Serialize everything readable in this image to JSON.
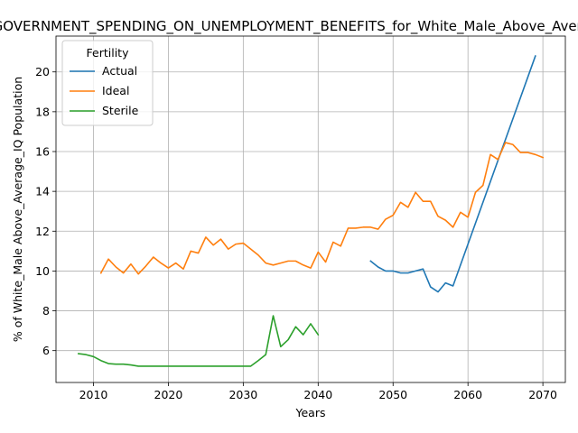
{
  "chart_data": {
    "type": "line",
    "title": "GOVERNMENT_SPENDING_ON_UNEMPLOYMENT_BENEFITS_for_White_Male_Above_Average_IQ",
    "xlabel": "Years",
    "ylabel": "% of White_Male Above_Average_IQ Population",
    "xlim": [
      2005,
      2073
    ],
    "ylim": [
      4.4,
      21.8
    ],
    "xticks": [
      2010,
      2020,
      2030,
      2040,
      2050,
      2060,
      2070
    ],
    "yticks": [
      6,
      8,
      10,
      12,
      14,
      16,
      18,
      20
    ],
    "grid": true,
    "legend": {
      "title": "Fertility",
      "position": "top-left"
    },
    "series": [
      {
        "name": "Actual",
        "color": "#1f77b4",
        "x": [
          2047,
          2048,
          2049,
          2050,
          2051,
          2052,
          2053,
          2054,
          2055,
          2056,
          2057,
          2058,
          2069
        ],
        "y": [
          10.5,
          10.2,
          10.0,
          10.0,
          9.9,
          9.9,
          10.0,
          10.1,
          9.2,
          8.95,
          9.4,
          9.25,
          20.8
        ]
      },
      {
        "name": "Ideal",
        "color": "#ff7f0e",
        "x": [
          2011,
          2012,
          2013,
          2014,
          2015,
          2016,
          2017,
          2018,
          2019,
          2020,
          2021,
          2022,
          2023,
          2024,
          2025,
          2026,
          2027,
          2028,
          2029,
          2030,
          2031,
          2032,
          2033,
          2034,
          2035,
          2036,
          2037,
          2038,
          2039,
          2040,
          2041,
          2042,
          2043,
          2044,
          2045,
          2046,
          2047,
          2048,
          2049,
          2050,
          2051,
          2052,
          2053,
          2054,
          2055,
          2056,
          2057,
          2058,
          2059,
          2060,
          2061,
          2062,
          2063,
          2064,
          2065,
          2066,
          2067,
          2068,
          2069,
          2070
        ],
        "y": [
          9.9,
          10.6,
          10.2,
          9.9,
          10.35,
          9.85,
          10.25,
          10.7,
          10.4,
          10.15,
          10.4,
          10.1,
          11.0,
          10.9,
          11.7,
          11.3,
          11.6,
          11.1,
          11.35,
          11.4,
          11.1,
          10.8,
          10.4,
          10.3,
          10.4,
          10.5,
          10.5,
          10.3,
          10.15,
          10.95,
          10.45,
          11.45,
          11.25,
          12.15,
          12.15,
          12.2,
          12.2,
          12.1,
          12.6,
          12.8,
          13.45,
          13.2,
          13.95,
          13.5,
          13.5,
          12.75,
          12.55,
          12.2,
          12.95,
          12.7,
          13.95,
          14.3,
          15.85,
          15.6,
          16.45,
          16.35,
          15.95,
          15.95,
          15.85,
          15.7
        ]
      },
      {
        "name": "Sterile",
        "color": "#2ca02c",
        "x": [
          2008,
          2009,
          2010,
          2011,
          2012,
          2013,
          2014,
          2015,
          2016,
          2017,
          2018,
          2019,
          2020,
          2021,
          2022,
          2023,
          2024,
          2025,
          2026,
          2027,
          2028,
          2029,
          2030,
          2031,
          2032,
          2033,
          2034,
          2035,
          2036,
          2037,
          2038,
          2039,
          2040
        ],
        "y": [
          5.85,
          5.8,
          5.7,
          5.5,
          5.35,
          5.32,
          5.32,
          5.28,
          5.22,
          5.22,
          5.22,
          5.22,
          5.22,
          5.22,
          5.22,
          5.22,
          5.22,
          5.22,
          5.22,
          5.22,
          5.22,
          5.22,
          5.22,
          5.22,
          5.5,
          5.8,
          7.75,
          6.2,
          6.55,
          7.2,
          6.8,
          7.35,
          6.8
        ]
      }
    ]
  }
}
